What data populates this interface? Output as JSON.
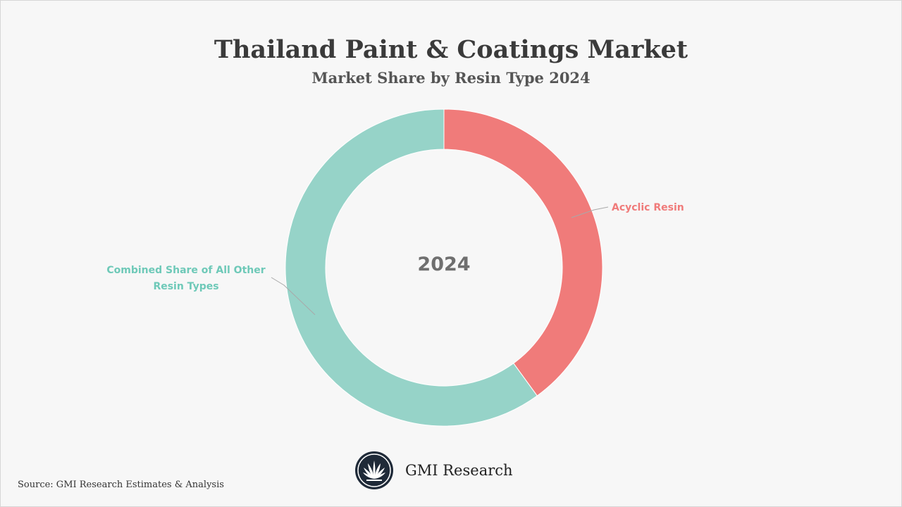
{
  "chart_data": {
    "type": "pie",
    "variant": "donut",
    "title": "Thailand Paint & Coatings Market",
    "subtitle": "Market Share by Resin Type 2024",
    "center_label": "2024",
    "legend": "none",
    "series": [
      {
        "name": "Acyclic Resin",
        "value": 40,
        "color": "#f07b7a"
      },
      {
        "name": "Combined Share of All Other Resin Types",
        "value": 60,
        "color": "#96d3c8"
      }
    ]
  },
  "footer": {
    "source": "Source: GMI Research Estimates & Analysis",
    "brand": "GMI Research"
  },
  "colors": {
    "background": "#f7f7f7",
    "logo": "#1f2a38"
  }
}
